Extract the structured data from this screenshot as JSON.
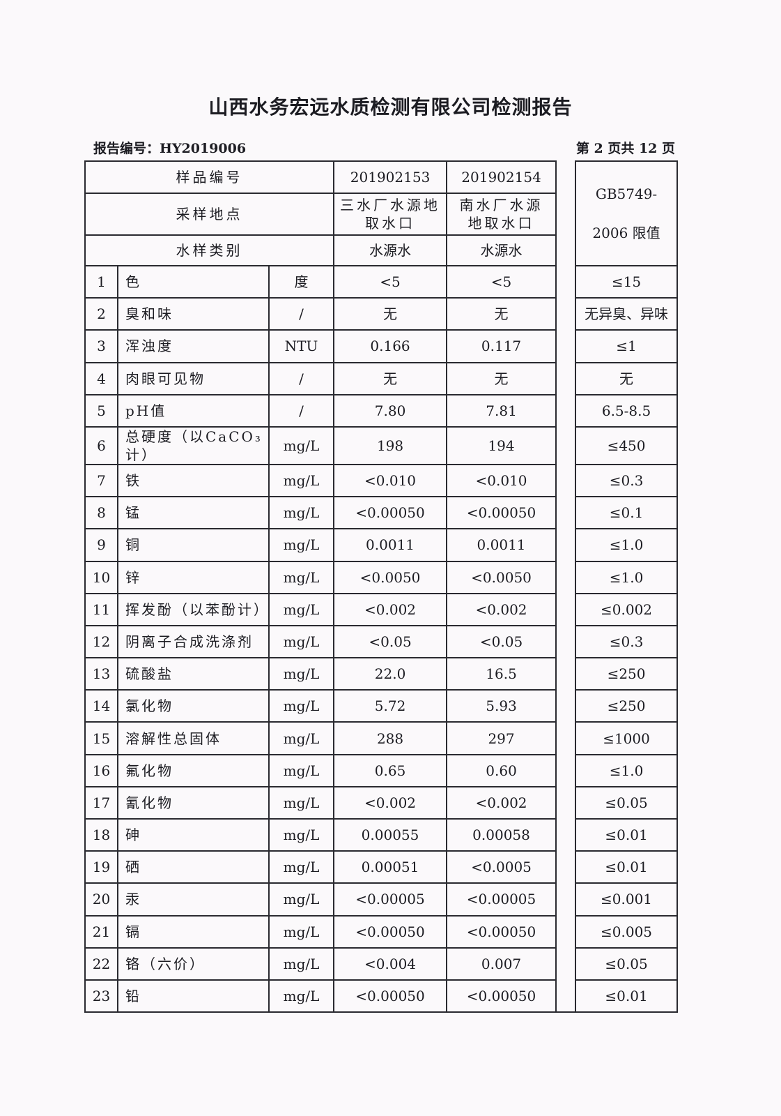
{
  "title": "山西水务宏远水质检测有限公司检测报告",
  "report_no_label": "报告编号：HY2019006",
  "page_label": "第 2 页共 12 页",
  "header": {
    "sample_no_label": "样品编号",
    "sample_no": [
      "201902153",
      "201902154"
    ],
    "site_label": "采样地点",
    "site": [
      "三水厂水源地取水口",
      "南水厂水源地取水口"
    ],
    "type_label": "水样类别",
    "type": [
      "水源水",
      "水源水"
    ],
    "limit_line1": "GB5749-",
    "limit_line2": "2006 限值"
  },
  "rows": [
    {
      "no": "1",
      "item": "色",
      "unit": "度",
      "s1": "<5",
      "s2": "<5",
      "limit": "≤15"
    },
    {
      "no": "2",
      "item": "臭和味",
      "unit": "/",
      "s1": "无",
      "s2": "无",
      "limit": "无异臭、异味"
    },
    {
      "no": "3",
      "item": "浑浊度",
      "unit": "NTU",
      "s1": "0.166",
      "s2": "0.117",
      "limit": "≤1"
    },
    {
      "no": "4",
      "item": "肉眼可见物",
      "unit": "/",
      "s1": "无",
      "s2": "无",
      "limit": "无"
    },
    {
      "no": "5",
      "item": "pH值",
      "unit": "/",
      "s1": "7.80",
      "s2": "7.81",
      "limit": "6.5-8.5"
    },
    {
      "no": "6",
      "item": "总硬度（以CaCO₃计）",
      "unit": "mg/L",
      "s1": "198",
      "s2": "194",
      "limit": "≤450"
    },
    {
      "no": "7",
      "item": "铁",
      "unit": "mg/L",
      "s1": "<0.010",
      "s2": "<0.010",
      "limit": "≤0.3"
    },
    {
      "no": "8",
      "item": "锰",
      "unit": "mg/L",
      "s1": "<0.00050",
      "s2": "<0.00050",
      "limit": "≤0.1"
    },
    {
      "no": "9",
      "item": "铜",
      "unit": "mg/L",
      "s1": "0.0011",
      "s2": "0.0011",
      "limit": "≤1.0"
    },
    {
      "no": "10",
      "item": "锌",
      "unit": "mg/L",
      "s1": "<0.0050",
      "s2": "<0.0050",
      "limit": "≤1.0"
    },
    {
      "no": "11",
      "item": "挥发酚（以苯酚计）",
      "unit": "mg/L",
      "s1": "<0.002",
      "s2": "<0.002",
      "limit": "≤0.002"
    },
    {
      "no": "12",
      "item": "阴离子合成洗涤剂",
      "unit": "mg/L",
      "s1": "<0.05",
      "s2": "<0.05",
      "limit": "≤0.3"
    },
    {
      "no": "13",
      "item": "硫酸盐",
      "unit": "mg/L",
      "s1": "22.0",
      "s2": "16.5",
      "limit": "≤250"
    },
    {
      "no": "14",
      "item": "氯化物",
      "unit": "mg/L",
      "s1": "5.72",
      "s2": "5.93",
      "limit": "≤250"
    },
    {
      "no": "15",
      "item": "溶解性总固体",
      "unit": "mg/L",
      "s1": "288",
      "s2": "297",
      "limit": "≤1000"
    },
    {
      "no": "16",
      "item": "氟化物",
      "unit": "mg/L",
      "s1": "0.65",
      "s2": "0.60",
      "limit": "≤1.0"
    },
    {
      "no": "17",
      "item": "氰化物",
      "unit": "mg/L",
      "s1": "<0.002",
      "s2": "<0.002",
      "limit": "≤0.05"
    },
    {
      "no": "18",
      "item": "砷",
      "unit": "mg/L",
      "s1": "0.00055",
      "s2": "0.00058",
      "limit": "≤0.01"
    },
    {
      "no": "19",
      "item": "硒",
      "unit": "mg/L",
      "s1": "0.00051",
      "s2": "<0.0005",
      "limit": "≤0.01"
    },
    {
      "no": "20",
      "item": "汞",
      "unit": "mg/L",
      "s1": "<0.00005",
      "s2": "<0.00005",
      "limit": "≤0.001"
    },
    {
      "no": "21",
      "item": "镉",
      "unit": "mg/L",
      "s1": "<0.00050",
      "s2": "<0.00050",
      "limit": "≤0.005"
    },
    {
      "no": "22",
      "item": "铬（六价）",
      "unit": "mg/L",
      "s1": "<0.004",
      "s2": "0.007",
      "limit": "≤0.05"
    },
    {
      "no": "23",
      "item": "铅",
      "unit": "mg/L",
      "s1": "<0.00050",
      "s2": "<0.00050",
      "limit": "≤0.01"
    }
  ]
}
